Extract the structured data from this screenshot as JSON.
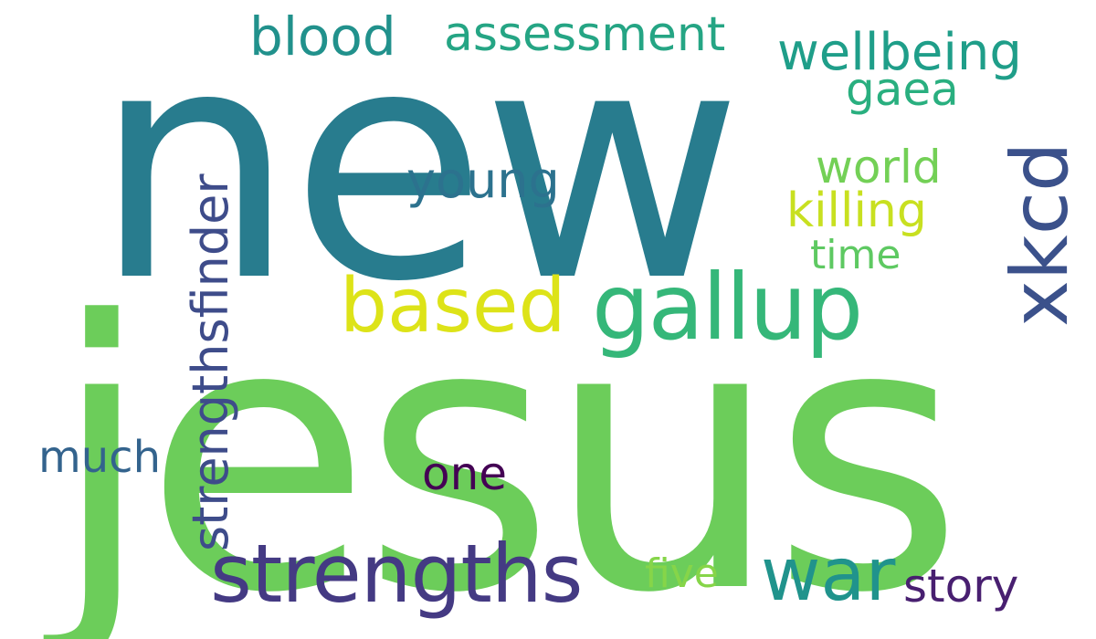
{
  "words": {
    "new": {
      "text": "new",
      "color": "#287c8e"
    },
    "jesus": {
      "text": "jesus",
      "color": "#6ccd5a"
    },
    "gallup": {
      "text": "gallup",
      "color": "#35b779"
    },
    "strengths": {
      "text": "strengths",
      "color": "#443a83"
    },
    "based": {
      "text": "based",
      "color": "#dde318"
    },
    "war": {
      "text": "war",
      "color": "#20938c"
    },
    "xkcd": {
      "text": "xkcd",
      "color": "#3b518b"
    },
    "strengthsfinder": {
      "text": "strengthsfinder",
      "color": "#3e4c8a"
    },
    "blood": {
      "text": "blood",
      "color": "#21918c"
    },
    "wellbeing": {
      "text": "wellbeing",
      "color": "#1f9e89"
    },
    "assessment": {
      "text": "assessment",
      "color": "#25a584"
    },
    "story": {
      "text": "story",
      "color": "#481f70"
    },
    "killing": {
      "text": "killing",
      "color": "#c8e020"
    },
    "young": {
      "text": "young",
      "color": "#2c728e"
    },
    "world": {
      "text": "world",
      "color": "#73d056"
    },
    "gaea": {
      "text": "gaea",
      "color": "#29af7f"
    },
    "one": {
      "text": "one",
      "color": "#440154"
    },
    "much": {
      "text": "much",
      "color": "#33638d"
    },
    "time": {
      "text": "time",
      "color": "#5ec962"
    },
    "five": {
      "text": "five",
      "color": "#86d549"
    }
  }
}
